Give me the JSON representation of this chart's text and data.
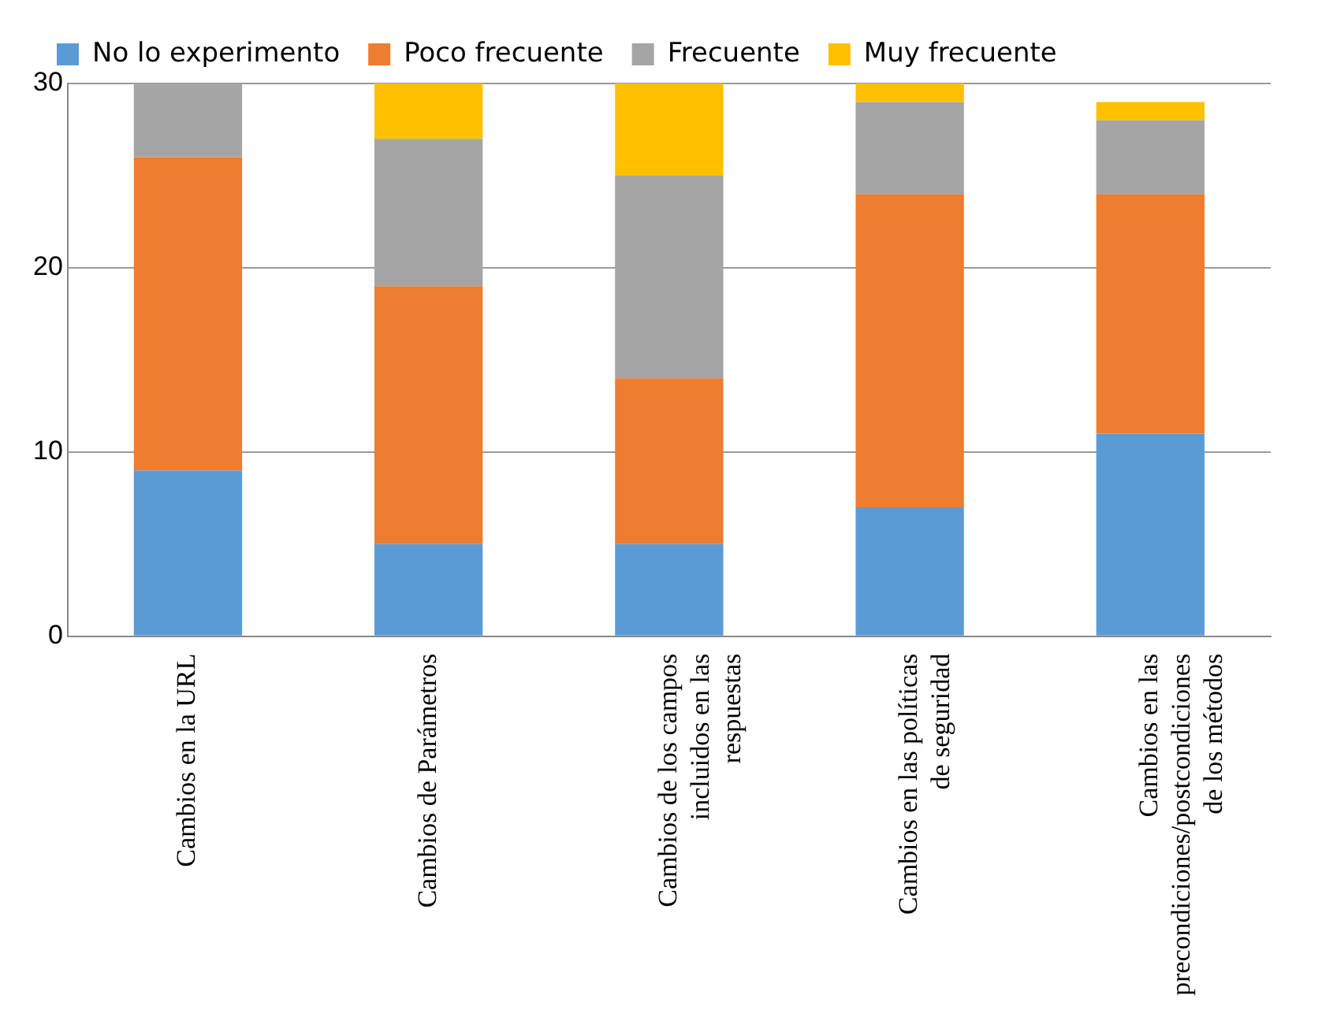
{
  "chart_data": {
    "type": "bar",
    "stacked": true,
    "categories": [
      "Cambios en la URL",
      "Cambios de Parámetros",
      "Cambios de los campos incluidos en las respuestas",
      "Cambios en las políticas de seguridad",
      "Cambios en las precondiciones/postcondiciones de los métodos"
    ],
    "series": [
      {
        "name": "No lo experimento",
        "color": "#5b9bd5",
        "values": [
          9,
          5,
          5,
          7,
          11
        ]
      },
      {
        "name": "Poco frecuente",
        "color": "#ed7d31",
        "values": [
          17,
          14,
          9,
          17,
          13
        ]
      },
      {
        "name": "Frecuente",
        "color": "#a5a5a5",
        "values": [
          4,
          8,
          11,
          5,
          4
        ]
      },
      {
        "name": "Muy frecuente",
        "color": "#ffc000",
        "values": [
          0,
          3,
          5,
          1,
          1
        ]
      }
    ],
    "ylim": [
      0,
      30
    ],
    "yticks": [
      0,
      10,
      20,
      30
    ],
    "grid": "y",
    "legend": "top left"
  }
}
